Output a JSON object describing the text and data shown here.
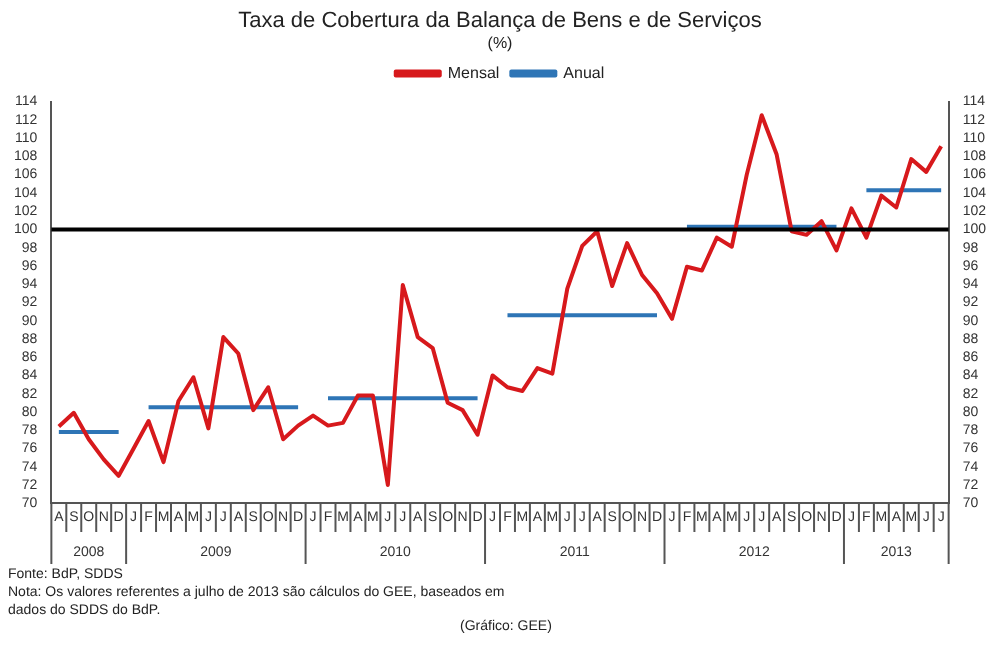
{
  "chart_data": {
    "type": "line",
    "title": "Taxa de Cobertura da Balança de Bens e de Serviços",
    "subtitle": "(%)",
    "categories": [
      "A",
      "S",
      "O",
      "N",
      "D",
      "J",
      "F",
      "M",
      "A",
      "M",
      "J",
      "J",
      "A",
      "S",
      "O",
      "N",
      "D",
      "J",
      "F",
      "M",
      "A",
      "M",
      "J",
      "J",
      "A",
      "S",
      "O",
      "N",
      "D",
      "J",
      "F",
      "M",
      "A",
      "M",
      "J",
      "J",
      "A",
      "S",
      "O",
      "N",
      "D",
      "J",
      "F",
      "M",
      "A",
      "M",
      "J",
      "J",
      "A",
      "S",
      "O",
      "N",
      "D",
      "J",
      "F",
      "M",
      "A",
      "M",
      "J",
      "J"
    ],
    "x2lim": [
      "2008-07-16",
      "2013-07-16"
    ],
    "x2ticks": [
      {
        "value": "2008-10",
        "label": "2008"
      },
      {
        "value": "2009-06-16",
        "label": "2009"
      },
      {
        "value": "2010-06-16",
        "label": "2010"
      },
      {
        "value": "2011-06-16",
        "label": "2011"
      },
      {
        "value": "2012-06-16",
        "label": "2012"
      },
      {
        "value": "2013-04",
        "label": "2013"
      }
    ],
    "series": [
      {
        "name": "Mensal",
        "color": "#d7191c",
        "values": [
          78.4,
          79.9,
          77,
          74.8,
          73,
          76,
          79,
          74.5,
          81.2,
          83.8,
          78.2,
          88.2,
          86.4,
          80.2,
          82.7,
          77,
          78.5,
          79.6,
          78.5,
          78.8,
          81.8,
          81.8,
          72,
          93.9,
          88.2,
          87,
          81,
          80.2,
          77.5,
          84,
          82.7,
          82.3,
          84.8,
          84.2,
          93.5,
          98.2,
          99.8,
          93.8,
          98.5,
          95,
          93,
          90.2,
          95.9,
          95.5,
          99.1,
          98.1,
          106,
          112.5,
          108.2,
          99.8,
          99.4,
          100.9,
          97.7,
          102.3,
          99.1,
          103.7,
          102.4,
          107.7,
          106.3,
          109.1
        ]
      },
      {
        "name": "Anual",
        "color": "#2e75b6",
        "values": [
          77.8,
          77.8,
          77.8,
          77.8,
          77.8,
          null,
          80.5,
          80.5,
          80.5,
          80.5,
          80.5,
          80.5,
          80.5,
          80.5,
          80.5,
          80.5,
          80.5,
          null,
          81.5,
          81.5,
          81.5,
          81.5,
          81.5,
          81.5,
          81.5,
          81.5,
          81.5,
          81.5,
          81.5,
          null,
          90.6,
          90.6,
          90.6,
          90.6,
          90.6,
          90.6,
          90.6,
          90.6,
          90.6,
          90.6,
          90.6,
          null,
          100.3,
          100.3,
          100.3,
          100.3,
          100.3,
          100.3,
          100.3,
          100.3,
          100.3,
          100.3,
          100.3,
          null,
          104.3,
          104.3,
          104.3,
          104.3,
          104.3,
          104.3
        ]
      }
    ],
    "ylim": [
      70,
      114
    ],
    "yticks": [
      70,
      72,
      74,
      76,
      78,
      80,
      82,
      84,
      86,
      88,
      90,
      92,
      94,
      96,
      98,
      100,
      102,
      104,
      106,
      108,
      110,
      112,
      114
    ],
    "y2lim": [
      70,
      114
    ],
    "y2ticks": [
      70,
      72,
      74,
      76,
      78,
      80,
      82,
      84,
      86,
      88,
      90,
      92,
      94,
      96,
      98,
      100,
      102,
      104,
      106,
      108,
      110,
      112,
      114
    ],
    "ref_lines": [
      {
        "axis": "y",
        "value": 100,
        "color": "#000000"
      }
    ],
    "grid": false,
    "legend": "top",
    "marker": "none",
    "line_style": "solid",
    "annotations": [
      "Fonte: BdP, SDDS",
      "Nota: Os valores referentes a julho de 2013 são cálculos do GEE, baseados em dados do SDDS do BdP.",
      "(Gráfico: GEE)"
    ]
  }
}
